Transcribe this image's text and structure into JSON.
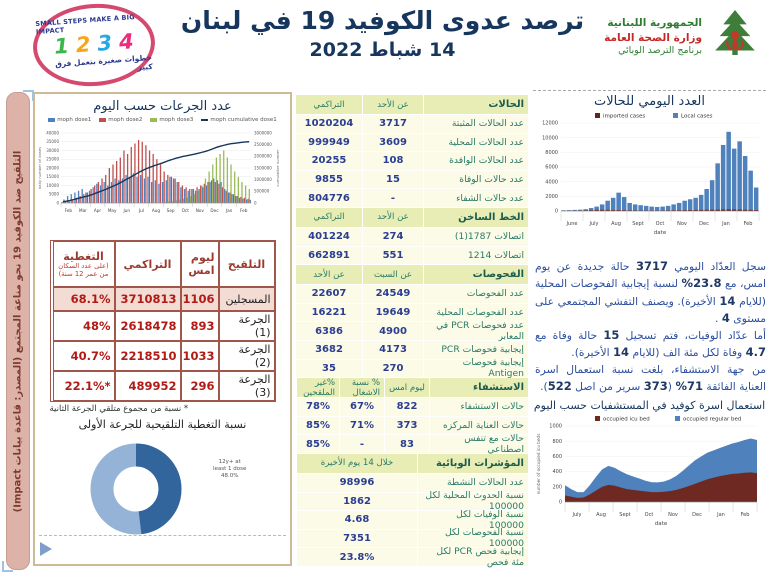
{
  "header": {
    "title_line1": "ترصد عدوى الكوفيد 19 في لبنان",
    "title_line2": "14 شباط 2022",
    "stamp": {
      "top": "SMALL STEPS MAKE A BIG IMPACT",
      "numbers": [
        "1",
        "2",
        "3",
        "4"
      ],
      "bottom": "خطوات صغيرة بتعمل فرق كبير"
    },
    "moph": {
      "line1": "الجمهورية اللبنانية",
      "line2": "وزارة الصحة العامة",
      "line3": "برنامج الترصد الوبائي"
    }
  },
  "left_banner": "التلقيح ضد الكوفيد 19  نحو مناعة المجتمع (المصدر: قاعدة بيانات Impact)",
  "vaccination": {
    "table": {
      "headers": [
        "التلقيح",
        "ليوم امس",
        "التراكمي",
        "التغطية"
      ],
      "coverage_sub": "(على عدد السكان من عمر 12 سنة)",
      "rows": [
        [
          "المسجلين",
          "1106",
          "3710813",
          "68.1%"
        ],
        [
          "الجرعة (1)",
          "893",
          "2618478",
          "48%"
        ],
        [
          "الجرعة (2)",
          "1033",
          "2218510",
          "40.7%"
        ],
        [
          "الجرعة (3)",
          "296",
          "489952",
          "22.1%*"
        ]
      ],
      "footnote": "* نسبة من مجموع متلقي الجرعة الثانية"
    }
  },
  "stats": {
    "sections": [
      {
        "header": [
          "الحالات",
          "عن الأحد",
          "التراكمي"
        ],
        "rows": [
          [
            "عدد الحالات المثبتة",
            "3717",
            "1020204"
          ],
          [
            "عدد الحالات المحلية",
            "3609",
            "999949"
          ],
          [
            "عدد الحالات الوافدة",
            "108",
            "20255"
          ],
          [
            "عدد حالات الوفاة",
            "15",
            "9855"
          ],
          [
            "عدد حالات الشفاء",
            "-",
            "804776"
          ]
        ]
      },
      {
        "header": [
          "الخط الساخن",
          "عن الأحد",
          "التراكمي"
        ],
        "rows": [
          [
            "اتصالات 1787(1)",
            "274",
            "401224"
          ],
          [
            "اتصالات 1214",
            "551",
            "662891"
          ]
        ]
      },
      {
        "header": [
          "الفحوصات",
          "عن السبت",
          "عن الأحد"
        ],
        "rows": [
          [
            "عدد الفحوصات",
            "24549",
            "22607"
          ],
          [
            "عدد الفحوصات المحلية",
            "19649",
            "16221"
          ],
          [
            "عدد فحوصات PCR في المعابر",
            "4900",
            "6386"
          ],
          [
            "إيجابية فحوصات PCR",
            "4173",
            "3682"
          ],
          [
            "إيجابية فحوصات Antigen",
            "270",
            "35"
          ]
        ]
      },
      {
        "header": [
          "الاستشفاء",
          "ليوم امس",
          "% نسبة الاشغال",
          "%غير الملقحين"
        ],
        "rows": [
          [
            "حالات الاستشفاء",
            "822",
            "67%",
            "78%"
          ],
          [
            "حالات العناية المركزه",
            "373",
            "71%",
            "85%"
          ],
          [
            "حالات مع تنفس اصطناعي",
            "83",
            "-",
            "85%"
          ]
        ]
      },
      {
        "header": [
          "المؤشرات الوبائية",
          "خلال 14 يوم الأخيرة"
        ],
        "rows": [
          [
            "عدد الحالات النشطة",
            "98996"
          ],
          [
            "نسبة الحدوث المحلية لكل 100000",
            "1862"
          ],
          [
            "نسبة الوفيات لكل 100000",
            "4.68"
          ],
          [
            "نسبة الفحوصات لكل 100000",
            "7351"
          ],
          [
            "إيجابية فحص PCR لكل مئة فحص",
            "23.8%"
          ]
        ]
      }
    ]
  },
  "right_panel": {
    "paragraph": [
      {
        "t": "سجل العدّاد اليومي "
      },
      {
        "t": "3717",
        "b": true
      },
      {
        "t": " حالة جديدة عن يوم امس، مع "
      },
      {
        "t": "23.8%",
        "b": true
      },
      {
        "t": " لنسبة إيجابية الفحوصات المحلية (للايام "
      },
      {
        "t": "14",
        "b": true
      },
      {
        "t": " الأخيرة). ويصنف التفشي المجتمعي على مستوى "
      },
      {
        "t": "4",
        "b": true
      },
      {
        "t": " ."
      },
      {
        "t": "\n"
      },
      {
        "t": "أما عدّاد الوفيات، فتم تسجيل "
      },
      {
        "t": "15",
        "b": true
      },
      {
        "t": " حالة وفاة مع "
      },
      {
        "t": "4.7",
        "b": true
      },
      {
        "t": " وفاة لكل مئة الف (للايام "
      },
      {
        "t": "14",
        "b": true
      },
      {
        "t": " الأخيرة)."
      },
      {
        "t": "\n"
      },
      {
        "t": "من جهة الاستشفاء، بلغت نسبة استعمال اسرة العناية الفائقة "
      },
      {
        "t": "71%",
        "b": true
      },
      {
        "t": " ("
      },
      {
        "t": "373",
        "b": true
      },
      {
        "t": " سرير من اصل "
      },
      {
        "t": "522",
        "b": true
      },
      {
        "t": ")."
      }
    ]
  },
  "chart_data": [
    {
      "type": "bar",
      "title": "عدد الجرعات حسب اليوم",
      "months": [
        "Feb",
        "Mar",
        "Apr",
        "May",
        "Jun",
        "Jul",
        "Aug",
        "Sep",
        "Oct",
        "Nov",
        "Dec",
        "Jan",
        "Feb"
      ],
      "legend": [
        "moph dose1",
        "moph dose2",
        "moph dose3",
        "moph cumulative dose1"
      ],
      "colors": [
        "#4f81bd",
        "#c0504d",
        "#9bbb59",
        "#17365d"
      ],
      "ylabel_left": "daily number of doses",
      "ylabel_right": "cumulative number",
      "ylim_left": [
        0,
        40000
      ],
      "ylim_right": [
        0,
        3000000
      ],
      "series": {
        "dose1": [
          2000,
          4000,
          5000,
          6000,
          7000,
          8000,
          6000,
          7000,
          9000,
          11000,
          10000,
          12000,
          10000,
          12000,
          14000,
          13000,
          14000,
          16000,
          15000,
          17000,
          15000,
          16000,
          14000,
          15000,
          12000,
          13000,
          11000,
          12000,
          13000,
          15000,
          14000,
          12000,
          9000,
          8000,
          7000,
          8000,
          7000,
          8000,
          9000,
          10000,
          12000,
          14000,
          13000,
          12000,
          8000,
          6000,
          5000,
          4000,
          3000,
          2500,
          2000,
          1800
        ],
        "dose2": [
          500,
          800,
          1000,
          1500,
          3000,
          4000,
          5000,
          6000,
          8000,
          10000,
          12000,
          14000,
          16000,
          20000,
          22000,
          24000,
          26000,
          30000,
          28000,
          32000,
          34000,
          36000,
          35000,
          33000,
          30000,
          28000,
          25000,
          22000,
          18000,
          16000,
          15000,
          14000,
          12000,
          10000,
          9000,
          8000,
          8000,
          9000,
          10000,
          11000,
          12000,
          13000,
          12000,
          11000,
          9000,
          7000,
          6000,
          5000,
          4000,
          3500,
          3000,
          2500
        ],
        "dose3": [
          0,
          0,
          0,
          0,
          0,
          0,
          0,
          0,
          0,
          0,
          0,
          0,
          0,
          0,
          0,
          0,
          0,
          0,
          0,
          0,
          0,
          0,
          0,
          0,
          0,
          0,
          0,
          0,
          500,
          800,
          1000,
          1500,
          2000,
          2500,
          3000,
          4000,
          5000,
          7000,
          10000,
          14000,
          18000,
          22000,
          26000,
          28000,
          30000,
          26000,
          22000,
          18000,
          15000,
          12000,
          10000,
          8000
        ],
        "cumulative": [
          50000,
          80000,
          110000,
          150000,
          190000,
          230000,
          270000,
          310000,
          360000,
          420000,
          480000,
          540000,
          600000,
          670000,
          740000,
          810000,
          890000,
          980000,
          1060000,
          1150000,
          1240000,
          1330000,
          1410000,
          1480000,
          1540000,
          1600000,
          1650000,
          1700000,
          1760000,
          1820000,
          1870000,
          1920000,
          1960000,
          2000000,
          2030000,
          2060000,
          2090000,
          2130000,
          2170000,
          2210000,
          2260000,
          2320000,
          2380000,
          2430000,
          2470000,
          2510000,
          2540000,
          2560000,
          2580000,
          2600000,
          2615000,
          2625000
        ]
      }
    },
    {
      "type": "bar",
      "title": "العدد اليومي للحالات",
      "months": [
        "June",
        "July",
        "Aug",
        "Sept",
        "Oct",
        "Nov",
        "Dec",
        "Jan",
        "Feb"
      ],
      "xlabel": "date",
      "ylim": [
        0,
        12000
      ],
      "legend": [
        "imported cases",
        "Local cases"
      ],
      "colors": [
        "#632523",
        "#4f81bd"
      ],
      "series": {
        "imported": [
          40,
          50,
          60,
          70,
          90,
          120,
          150,
          160,
          150,
          140,
          130,
          120,
          100,
          90,
          80,
          80,
          70,
          70,
          80,
          90,
          100,
          110,
          120,
          130,
          140,
          150,
          160,
          170,
          180,
          200,
          220,
          200,
          190,
          170,
          150,
          130
        ],
        "local": [
          100,
          120,
          150,
          180,
          250,
          400,
          600,
          900,
          1400,
          1800,
          2500,
          1900,
          1100,
          900,
          800,
          700,
          600,
          550,
          600,
          700,
          900,
          1100,
          1400,
          1600,
          1800,
          2200,
          3000,
          4200,
          6500,
          9000,
          10800,
          8500,
          9500,
          7500,
          5500,
          3200
        ]
      }
    },
    {
      "type": "area",
      "title": "استعمال اسرة كوفيد في المستشفيات حسب اليوم",
      "months": [
        "July",
        "Aug",
        "Sept",
        "Oct",
        "Nov",
        "Dec",
        "Jan",
        "Feb"
      ],
      "xlabel": "date",
      "ylabel": "number of occupied icu beds",
      "ylim": [
        0,
        1000
      ],
      "legend": [
        "occupied icu bed",
        "occupied regular bed"
      ],
      "colors": [
        "#6e2a22",
        "#4f81bd"
      ],
      "series": {
        "icu": [
          85,
          70,
          55,
          60,
          100,
          150,
          200,
          225,
          215,
          190,
          170,
          160,
          150,
          140,
          130,
          130,
          135,
          145,
          160,
          185,
          210,
          240,
          270,
          300,
          320,
          340,
          355,
          370,
          375,
          385,
          390,
          380
        ],
        "regular": [
          135,
          100,
          75,
          70,
          120,
          180,
          230,
          250,
          235,
          215,
          195,
          175,
          160,
          140,
          130,
          128,
          135,
          155,
          185,
          225,
          270,
          310,
          330,
          350,
          360,
          370,
          385,
          400,
          415,
          430,
          445,
          435
        ]
      }
    },
    {
      "type": "pie",
      "title": "نسبة التغطية التلقيحية للجرعة الأولى",
      "label_lines": [
        "12y+ at",
        "least 1 dose",
        "48.0%"
      ],
      "slices": [
        {
          "name": "12y+ at least 1 dose",
          "value": 48,
          "color": "#31659c"
        },
        {
          "name": "remaining",
          "value": 52,
          "color": "#95b3d7"
        }
      ]
    }
  ]
}
